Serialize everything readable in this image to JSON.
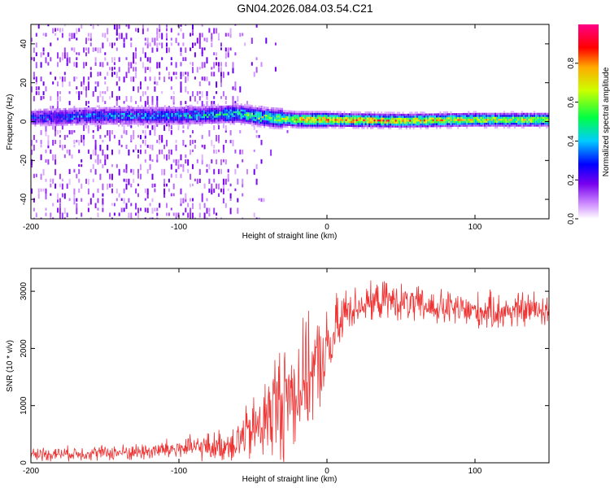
{
  "title": "GN04.2026.084.03.54.C21",
  "chart_data": [
    {
      "type": "heatmap",
      "xlabel": "Height of straight line (km)",
      "ylabel": "Frequency (Hz)",
      "xlim": [
        -200,
        150
      ],
      "ylim": [
        -50,
        50
      ],
      "xticks": [
        "-200",
        "-100",
        "0",
        "100"
      ],
      "yticks": [
        "-40",
        "-20",
        "0",
        "20",
        "40"
      ],
      "colorbar": {
        "label": "Normalized spectral amplitude",
        "range": [
          0,
          1
        ],
        "ticks": [
          "0.0",
          "0.2",
          "0.4",
          "0.6",
          "0.8"
        ],
        "colors": [
          "#ffffff",
          "#cc88ff",
          "#7700ee",
          "#0000ff",
          "#00ccff",
          "#00ff44",
          "#ccff00",
          "#ffaa00",
          "#ff0000",
          "#ff0088"
        ]
      },
      "ridge": [
        {
          "x": -200,
          "f": 2,
          "amp": 0.3
        },
        {
          "x": -150,
          "f": 3,
          "amp": 0.35
        },
        {
          "x": -100,
          "f": 3,
          "amp": 0.4
        },
        {
          "x": -60,
          "f": 4,
          "amp": 0.5
        },
        {
          "x": -40,
          "f": 2,
          "amp": 0.6
        },
        {
          "x": -20,
          "f": 1,
          "amp": 0.8
        },
        {
          "x": 0,
          "f": 1,
          "amp": 0.9
        },
        {
          "x": 50,
          "f": 0.5,
          "amp": 0.85
        },
        {
          "x": 100,
          "f": 1,
          "amp": 0.75
        },
        {
          "x": 150,
          "f": 1,
          "amp": 0.7
        }
      ]
    },
    {
      "type": "line",
      "xlabel": "Height of straight line (km)",
      "ylabel": "SNR (10 * v/v)",
      "xlim": [
        -200,
        150
      ],
      "ylim": [
        0,
        3400
      ],
      "xticks": [
        "-200",
        "-100",
        "0",
        "100"
      ],
      "yticks": [
        "0",
        "1000",
        "2000",
        "3000"
      ],
      "color": "#ee3333",
      "series": [
        {
          "x": [
            -200,
            -180,
            -160,
            -140,
            -120,
            -100,
            -90,
            -80,
            -70,
            -60,
            -50,
            -40,
            -35,
            -30,
            -25,
            -20,
            -15,
            -10,
            -5,
            0,
            5,
            10,
            15,
            20,
            30,
            40,
            50,
            60,
            80,
            100,
            120,
            150
          ],
          "mean": [
            150,
            160,
            170,
            180,
            200,
            250,
            260,
            280,
            300,
            400,
            550,
            800,
            1000,
            1100,
            1200,
            1300,
            1450,
            1600,
            1750,
            1900,
            2200,
            2500,
            2700,
            2750,
            2800,
            2850,
            2800,
            2750,
            2700,
            2650,
            2650,
            2700
          ],
          "spread": [
            150,
            150,
            160,
            170,
            200,
            250,
            260,
            300,
            350,
            500,
            700,
            1000,
            1200,
            1300,
            1300,
            1300,
            1200,
            1100,
            1000,
            900,
            800,
            700,
            500,
            400,
            400,
            400,
            400,
            400,
            400,
            400,
            400,
            400
          ]
        }
      ]
    }
  ]
}
